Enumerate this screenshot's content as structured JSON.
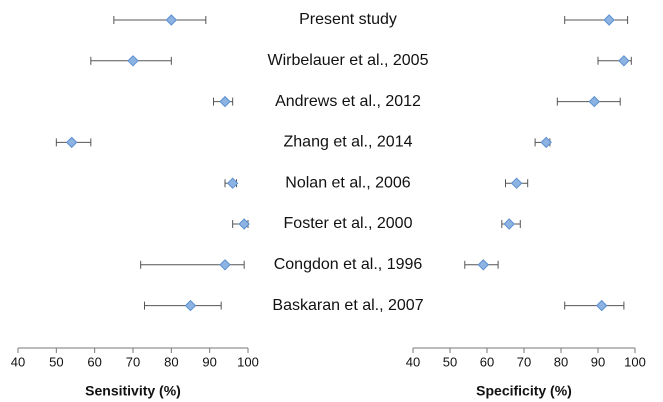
{
  "chart_data": {
    "type": "forest",
    "categories": [
      "Present study",
      "Wirbelauer et al., 2005",
      "Andrews et al., 2012",
      "Zhang et al., 2014",
      "Nolan et al., 2006",
      "Foster et al., 2000",
      "Congdon et al., 1996",
      "Baskaran et al., 2007"
    ],
    "marker_color": "#8db3e2",
    "marker_edge": "#5b8fd0",
    "bar_color": "#555555",
    "panels": [
      {
        "xlabel": "Sensitivity (%)",
        "xlim": [
          40,
          100
        ],
        "xticks": [
          40,
          50,
          60,
          70,
          80,
          90,
          100
        ],
        "values": [
          80,
          70,
          94,
          54,
          96,
          99,
          94,
          85
        ],
        "lower": [
          65,
          59,
          91,
          50,
          94,
          96,
          72,
          73
        ],
        "upper": [
          89,
          80,
          96,
          59,
          97,
          100,
          99,
          93
        ]
      },
      {
        "xlabel": "Specificity (%)",
        "xlim": [
          40,
          100
        ],
        "xticks": [
          40,
          50,
          60,
          70,
          80,
          90,
          100
        ],
        "values": [
          93,
          97,
          89,
          76,
          68,
          66,
          59,
          91
        ],
        "lower": [
          81,
          90,
          79,
          73,
          65,
          64,
          54,
          81
        ],
        "upper": [
          98,
          99,
          96,
          77,
          71,
          69,
          63,
          97
        ]
      }
    ]
  }
}
